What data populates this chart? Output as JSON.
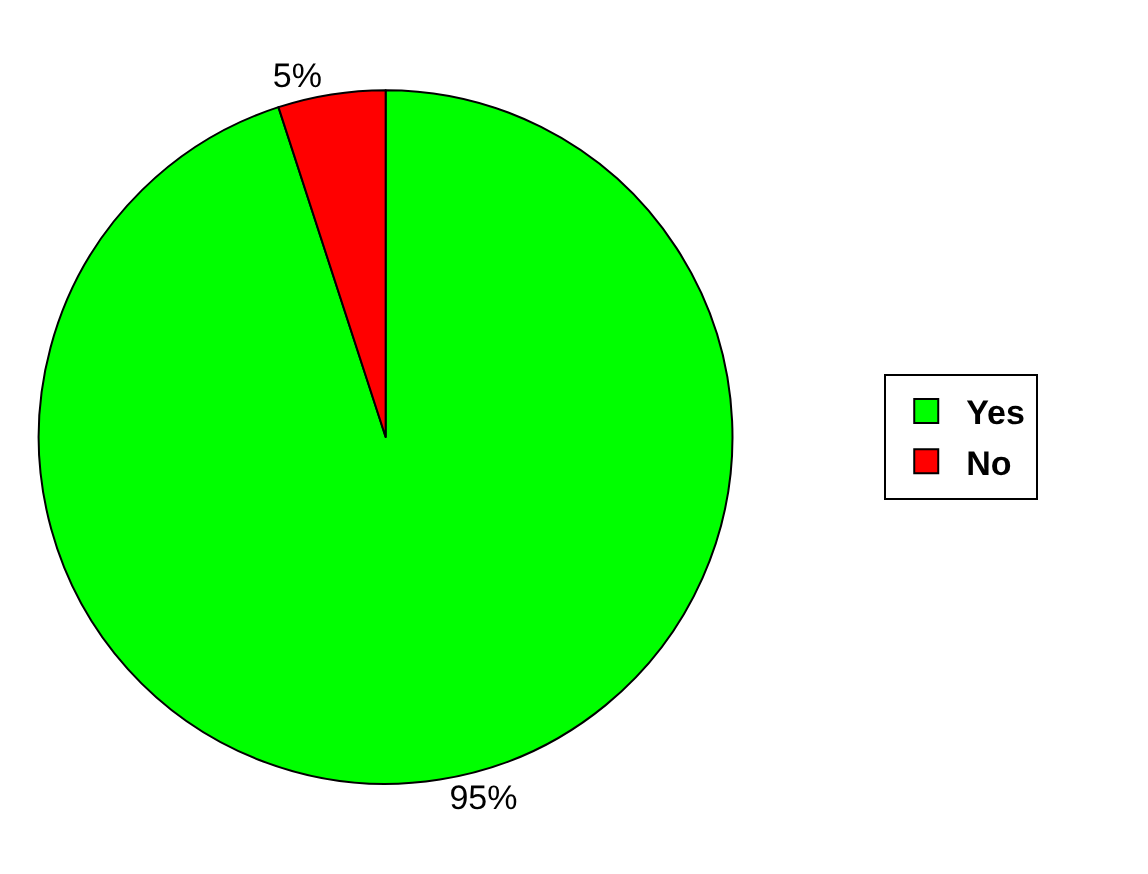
{
  "chart_data": {
    "type": "pie",
    "categories": [
      "Yes",
      "No"
    ],
    "values": [
      95,
      5
    ],
    "colors": [
      "#00ff00",
      "#ff0000"
    ],
    "value_labels": [
      "95%",
      "5%"
    ],
    "legend": "right"
  }
}
